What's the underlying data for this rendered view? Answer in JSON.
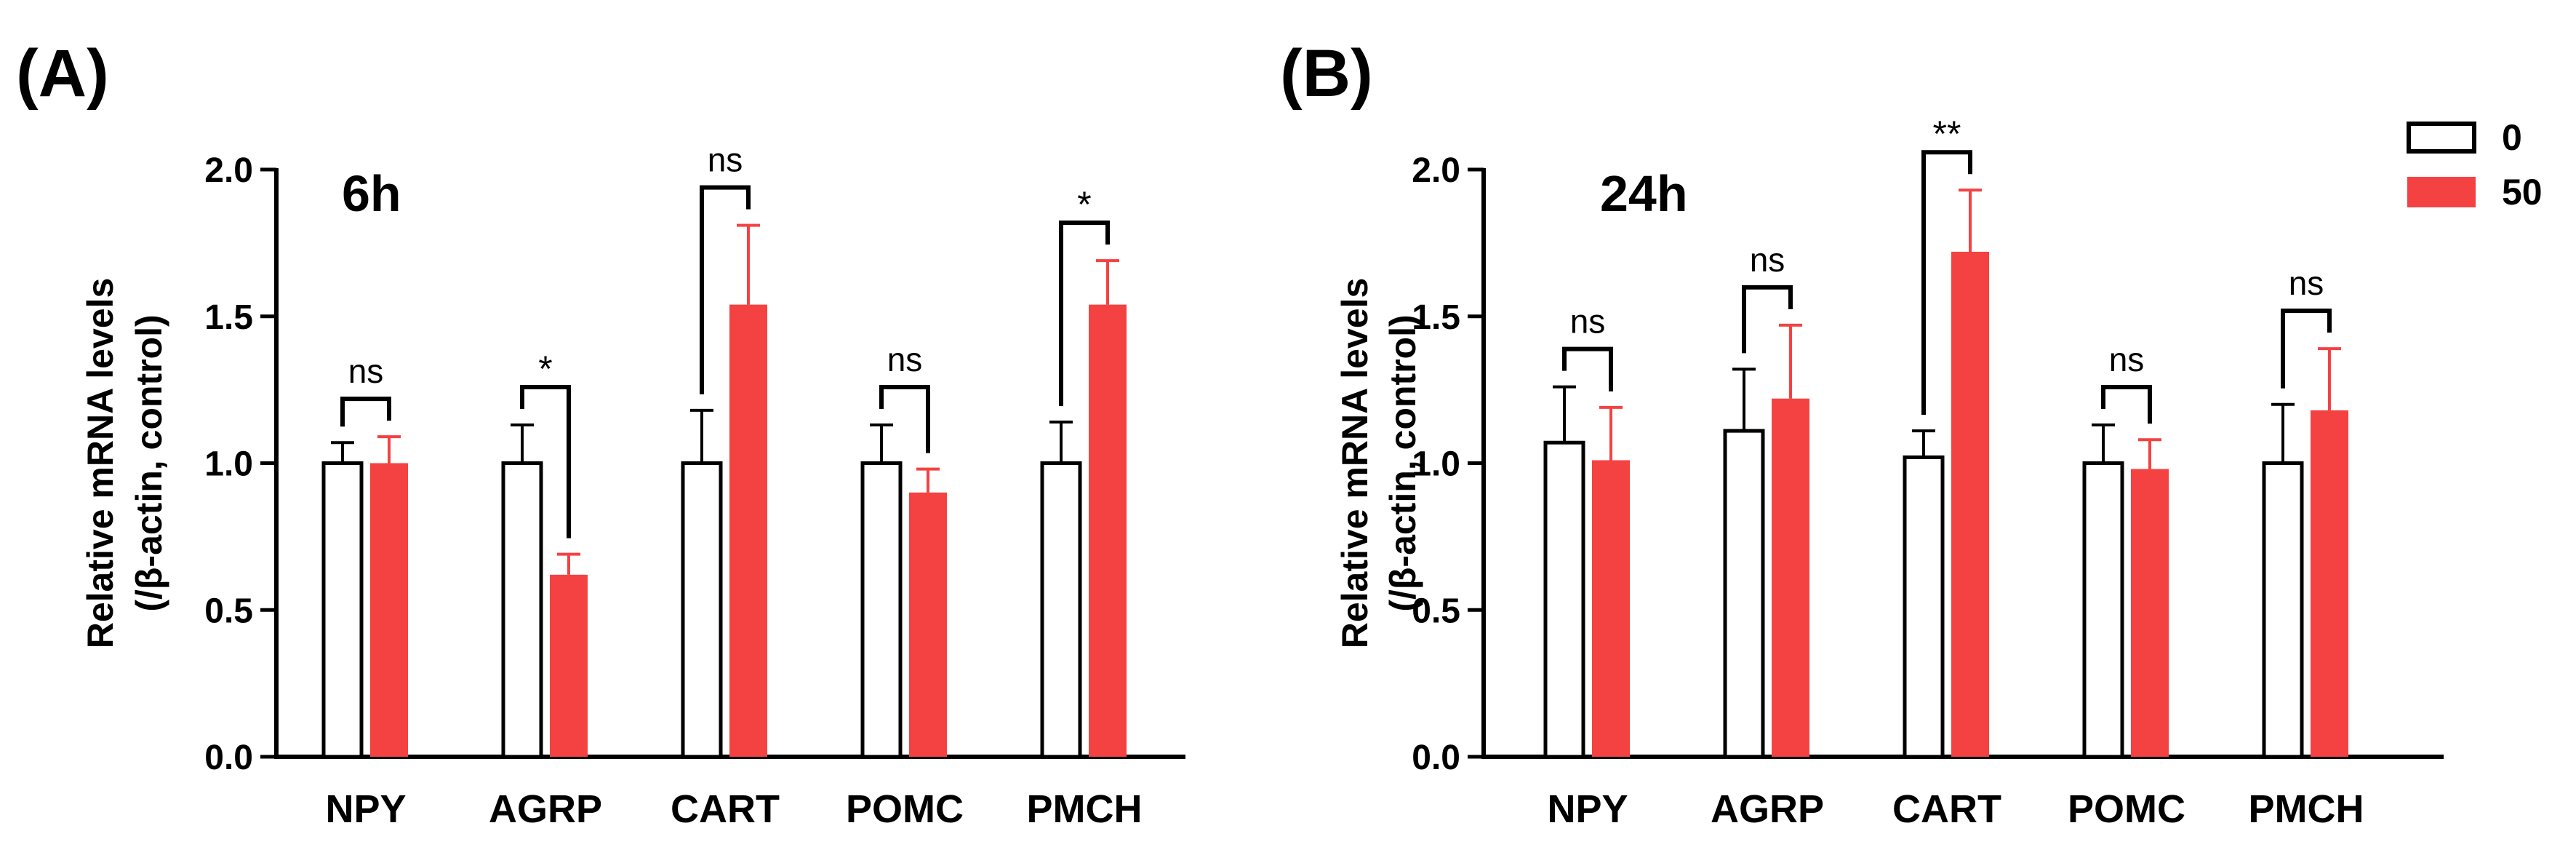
{
  "figure": {
    "colors": {
      "control": "#ffffff",
      "treated": "#f44242",
      "axis": "#000000"
    },
    "legend": {
      "placement": "top-right",
      "entries": [
        "0",
        "50"
      ]
    }
  },
  "chart_data": [
    {
      "type": "bar",
      "panel": "(A)",
      "title": "6h",
      "xlabel": "",
      "ylabel": [
        "Relative mRNA levels",
        "(/β-actin, control)"
      ],
      "ylim": [
        0,
        2.0
      ],
      "yticks": [
        "0.0",
        "0.5",
        "1.0",
        "1.5",
        "2.0"
      ],
      "categories": [
        "NPY",
        "AGRP",
        "CART",
        "POMC",
        "PMCH"
      ],
      "series": [
        {
          "name": "0",
          "values": [
            1.0,
            1.0,
            1.0,
            1.0,
            1.0
          ],
          "errors": [
            0.07,
            0.13,
            0.18,
            0.13,
            0.14
          ]
        },
        {
          "name": "50",
          "values": [
            1.0,
            0.62,
            1.54,
            0.9,
            1.54
          ],
          "errors": [
            0.09,
            0.07,
            0.27,
            0.08,
            0.15
          ]
        }
      ],
      "significance": [
        "ns",
        "*",
        "ns",
        "ns",
        "*"
      ]
    },
    {
      "type": "bar",
      "panel": "(B)",
      "title": "24h",
      "xlabel": "",
      "ylabel": [
        "Relative mRNA levels",
        "(/β-actin, control)"
      ],
      "ylim": [
        0,
        2.0
      ],
      "yticks": [
        "0.0",
        "0.5",
        "1.0",
        "1.5",
        "2.0"
      ],
      "categories": [
        "NPY",
        "AGRP",
        "CART",
        "POMC",
        "PMCH"
      ],
      "series": [
        {
          "name": "0",
          "values": [
            1.07,
            1.11,
            1.02,
            1.0,
            1.0
          ],
          "errors": [
            0.19,
            0.21,
            0.09,
            0.13,
            0.2
          ]
        },
        {
          "name": "50",
          "values": [
            1.01,
            1.22,
            1.72,
            0.98,
            1.18
          ],
          "errors": [
            0.18,
            0.25,
            0.21,
            0.1,
            0.21
          ]
        }
      ],
      "significance": [
        "ns",
        "ns",
        "**",
        "ns",
        "ns"
      ]
    }
  ]
}
